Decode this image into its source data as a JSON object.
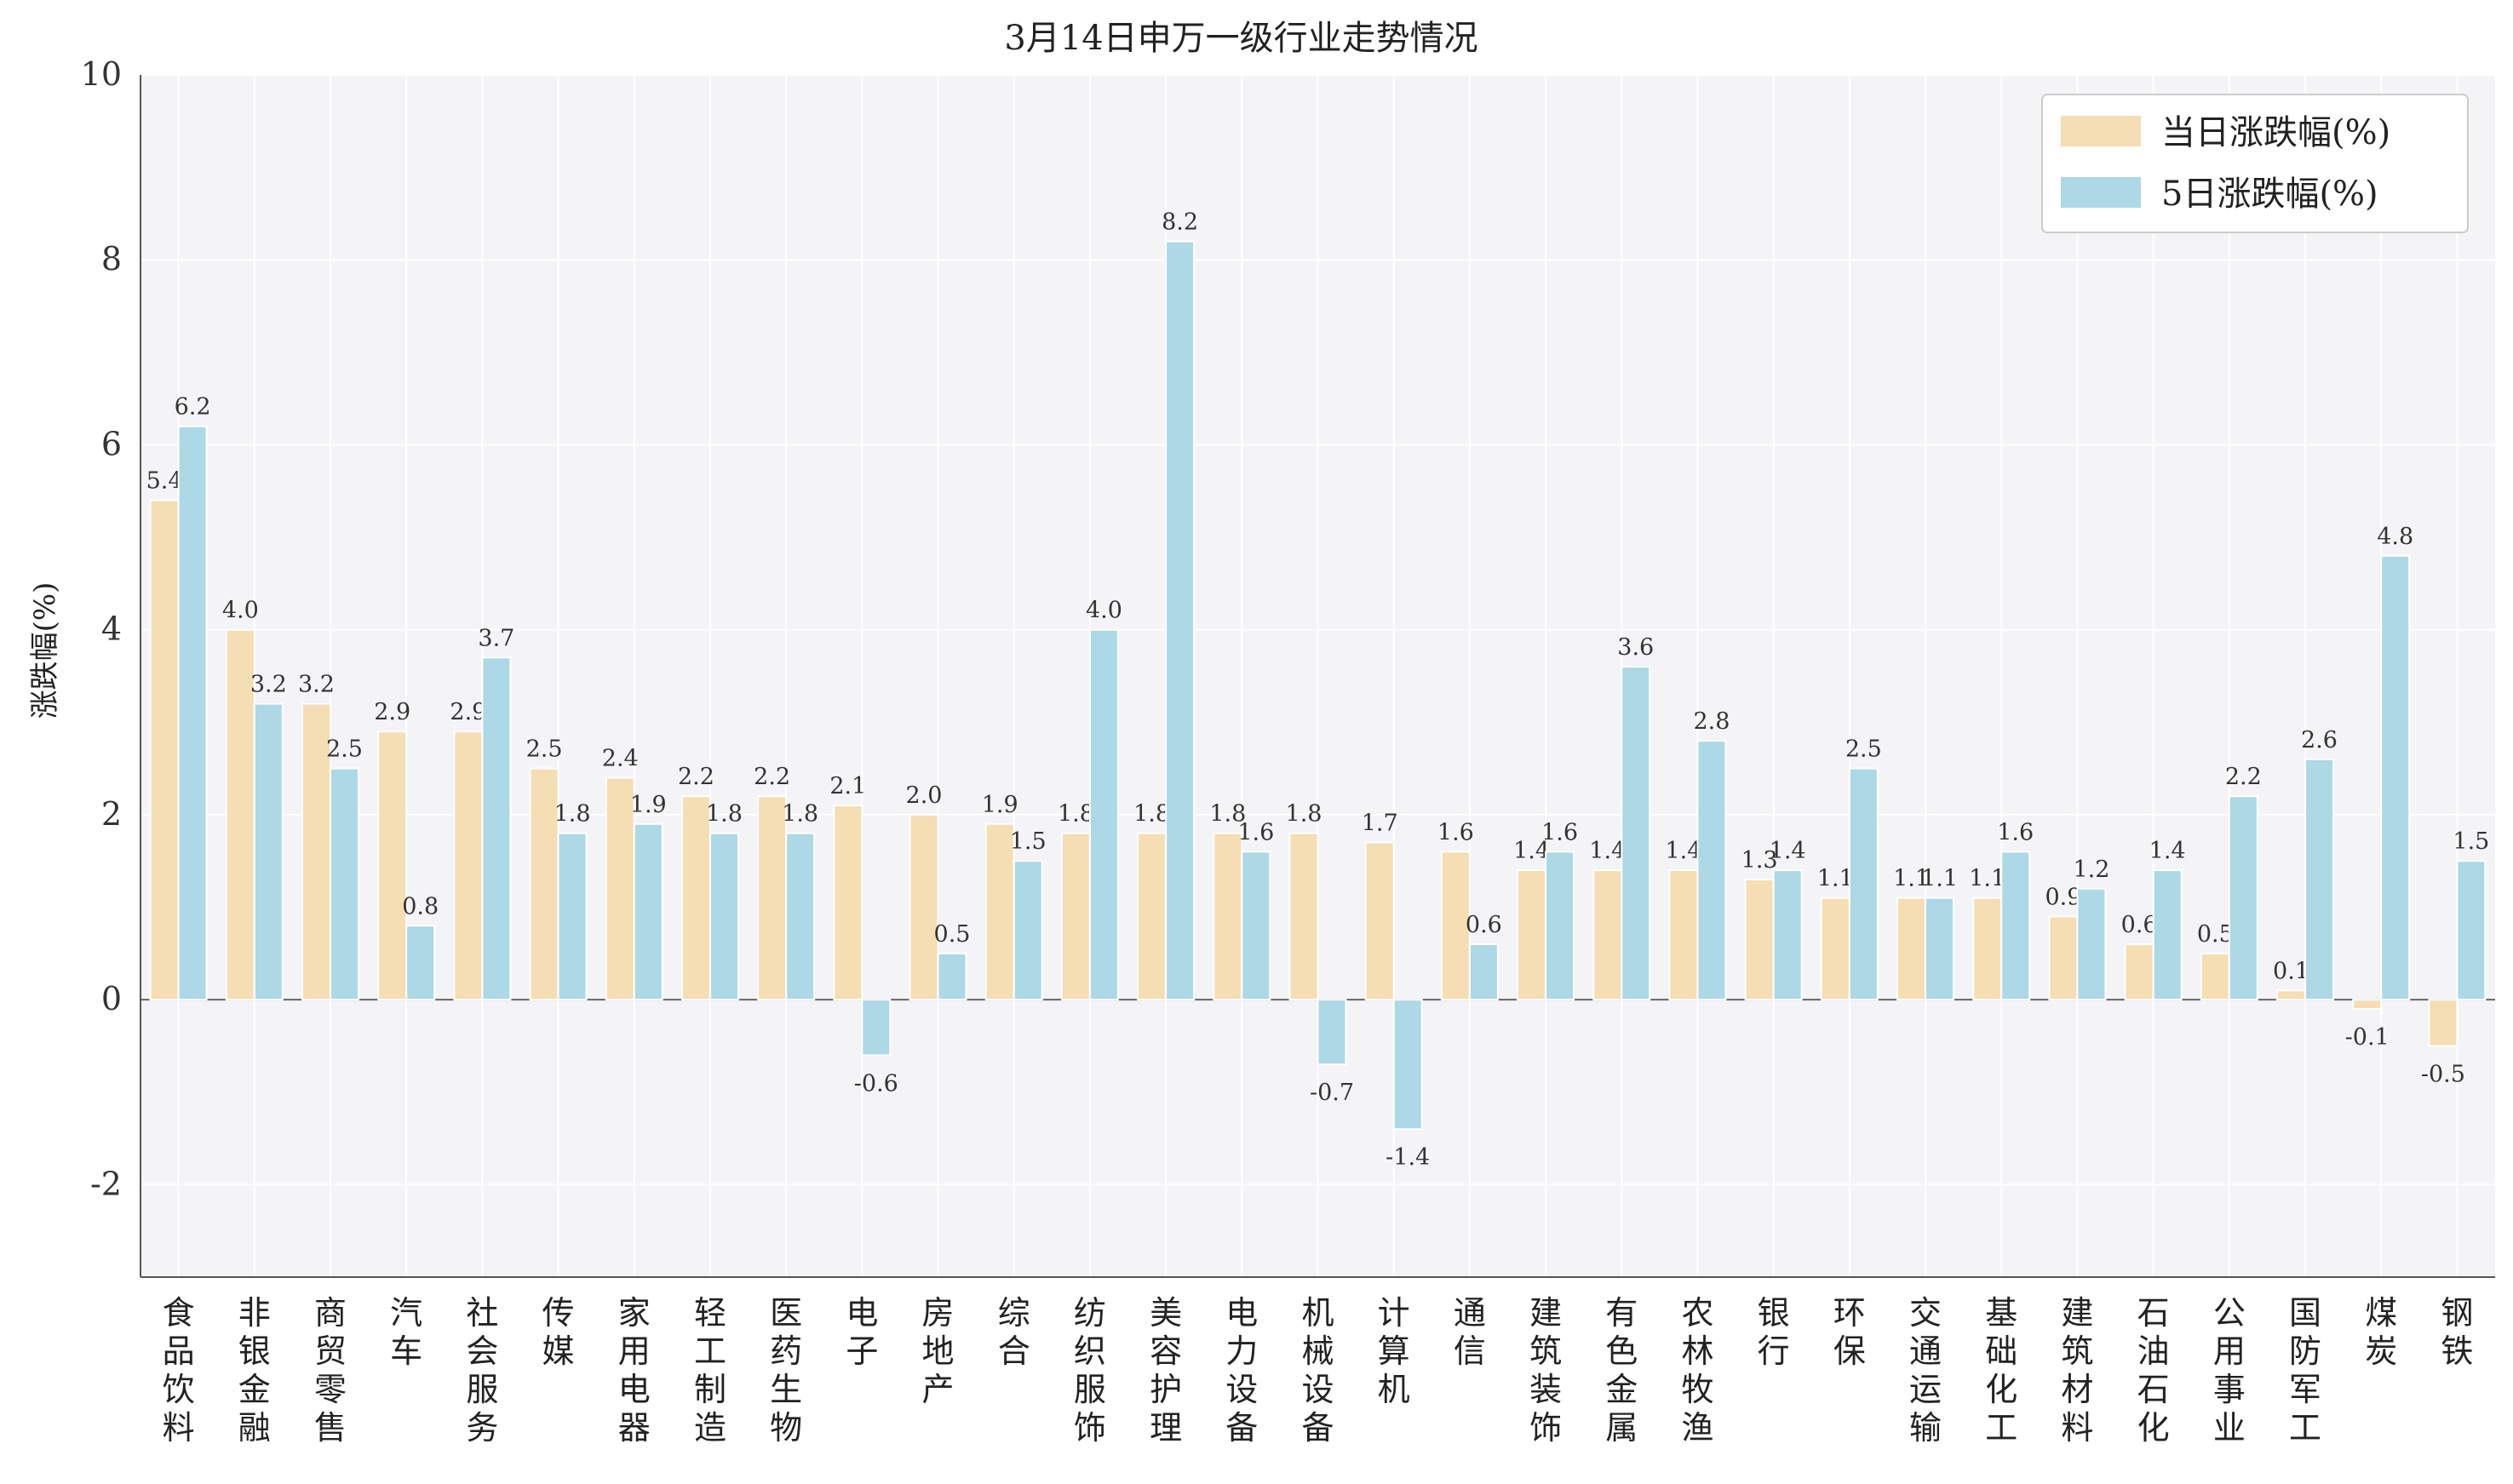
{
  "chart_data": {
    "type": "bar",
    "title": "3月14日申万一级行业走势情况",
    "xlabel": "",
    "ylabel": "涨跌幅(%)",
    "ylim": [
      -3,
      10
    ],
    "yticks": [
      -2,
      0,
      2,
      4,
      6,
      8,
      10
    ],
    "grid": true,
    "legend_position": "top-right",
    "categories": [
      "食品饮料",
      "非银金融",
      "商贸零售",
      "汽车",
      "社会服务",
      "传媒",
      "家用电器",
      "轻工制造",
      "医药生物",
      "电子",
      "房地产",
      "综合",
      "纺织服饰",
      "美容护理",
      "电力设备",
      "机械设备",
      "计算机",
      "通信",
      "建筑装饰",
      "有色金属",
      "农林牧渔",
      "银行",
      "环保",
      "交通运输",
      "基础化工",
      "建筑材料",
      "石油石化",
      "公用事业",
      "国防军工",
      "煤炭",
      "钢铁"
    ],
    "series": [
      {
        "name": "当日涨跌幅(%)",
        "color": "#f5deb3",
        "values": [
          5.4,
          4.0,
          3.2,
          2.9,
          2.9,
          2.5,
          2.4,
          2.2,
          2.2,
          2.1,
          2.0,
          1.9,
          1.8,
          1.8,
          1.8,
          1.8,
          1.7,
          1.6,
          1.4,
          1.4,
          1.4,
          1.3,
          1.1,
          1.1,
          1.1,
          0.9,
          0.6,
          0.5,
          0.1,
          -0.1,
          -0.5
        ]
      },
      {
        "name": "5日涨跌幅(%)",
        "color": "#add8e6",
        "values": [
          6.2,
          3.2,
          2.5,
          0.8,
          3.7,
          1.8,
          1.9,
          1.8,
          1.8,
          -0.6,
          0.5,
          1.5,
          4.0,
          8.2,
          1.6,
          -0.7,
          -1.4,
          0.6,
          1.6,
          3.6,
          2.8,
          1.4,
          2.5,
          1.1,
          1.6,
          1.2,
          1.4,
          2.2,
          2.6,
          4.8,
          1.5
        ]
      }
    ]
  }
}
